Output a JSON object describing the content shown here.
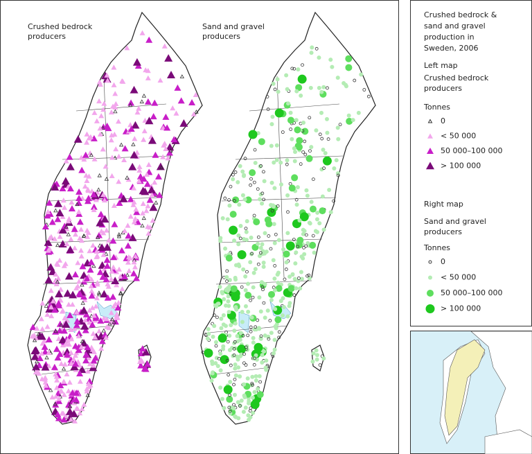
{
  "maps": [
    {
      "title": [
        "Crushed bedrock",
        "producers"
      ]
    },
    {
      "title": [
        "Sand and gravel",
        "producers"
      ]
    }
  ],
  "legend": {
    "title": [
      "Crushed bedrock &",
      "sand and gravel",
      "production in",
      "Sweden, 2006"
    ],
    "sections": [
      {
        "heading": "Left map",
        "subtitle": [
          "Crushed bedrock",
          "producers"
        ],
        "unit": "Tonnes",
        "items": [
          "0",
          "< 50 000",
          "50 000–100 000",
          "> 100 000"
        ]
      },
      {
        "heading": "Right map",
        "subtitle": [
          "Sand and gravel",
          "producers"
        ],
        "unit": "Tonnes",
        "items": [
          "0",
          "< 50 000",
          "50 000–100 000",
          "> 100 000"
        ]
      }
    ]
  }
}
